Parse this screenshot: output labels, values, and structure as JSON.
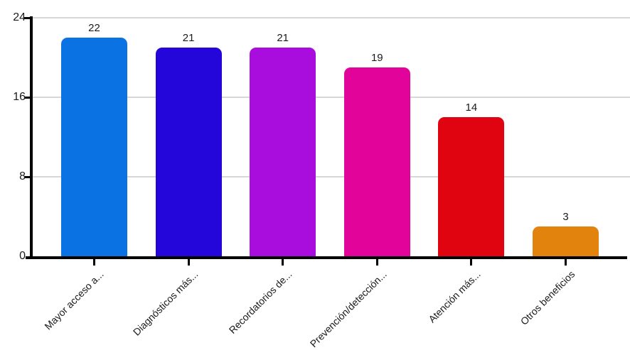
{
  "chart_data": {
    "type": "bar",
    "orientation": "vertical",
    "categories": [
      "Mayor acceso a...",
      "Diagnósticos más...",
      "Recordatorios de...",
      "Prevención/detección...",
      "Atención más...",
      "Otros beneficios"
    ],
    "values": [
      22,
      21,
      21,
      19,
      14,
      3
    ],
    "value_labels": [
      "22",
      "21",
      "21",
      "19",
      "14",
      "3"
    ],
    "bar_colors": [
      "#0a72e2",
      "#2405da",
      "#a90ddd",
      "#e2039a",
      "#e00310",
      "#e2830e"
    ],
    "ylim": [
      0,
      24
    ],
    "yticks": [
      0,
      8,
      16,
      24
    ],
    "ytick_labels": [
      "0",
      "8",
      "16",
      "24"
    ],
    "grid": "horizontal",
    "legend": "none",
    "value_labels_shown": true,
    "xtick_label_rotation_deg": 45
  },
  "style": {
    "background": "#ffffff",
    "axis_color": "#000000",
    "gridline_color": "#d7d7d7",
    "text_color": "#1a1a1a"
  }
}
